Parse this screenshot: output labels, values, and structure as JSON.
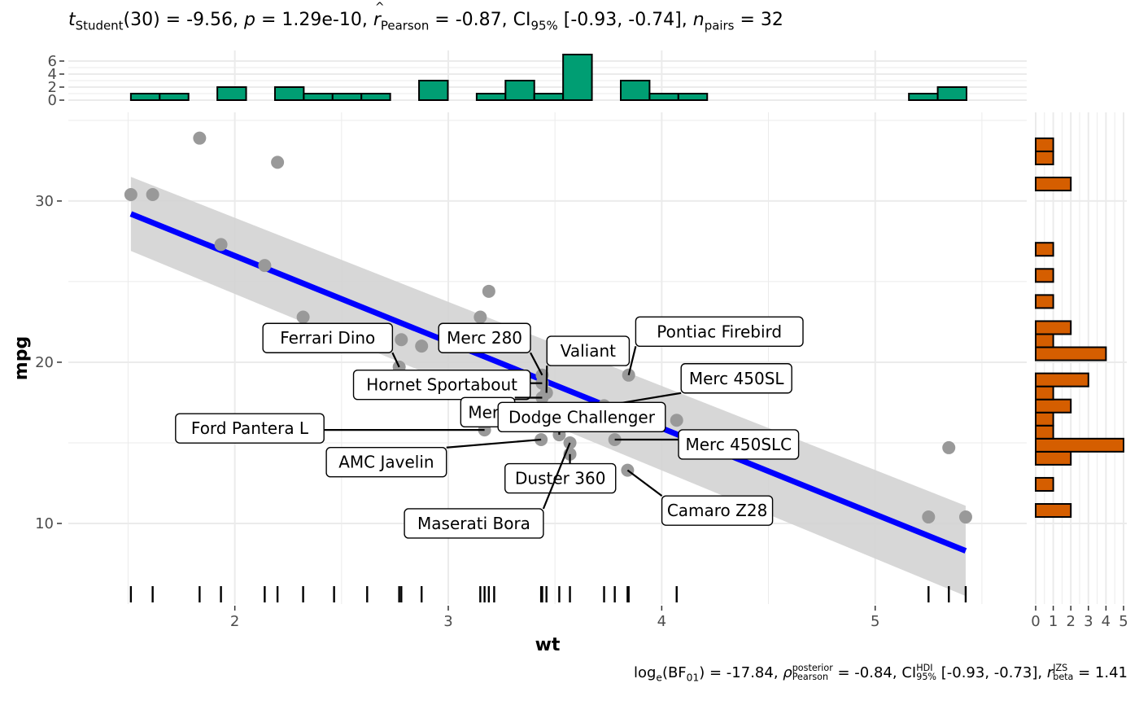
{
  "subtitle": {
    "t_label": "t",
    "t_sub": "Student",
    "t_value": "(30) = -9.56, ",
    "p_label": "p",
    "p_value": " = 1.29e-10, ",
    "r_label": "r",
    "r_sub": "Pearson",
    "r_value": " = -0.87, ",
    "ci_label": "CI",
    "ci_sub": "95%",
    "ci_value": " [-0.93, -0.74], ",
    "n_label": "n",
    "n_sub": "pairs",
    "n_value": " = 32"
  },
  "caption": {
    "bf_text": "log",
    "bf_sub": "e",
    "bf_rest": "(BF",
    "bf_rest_sub": "01",
    "bf_value": ") = -17.84, ",
    "rho_label": "ρ",
    "rho_sup": "posterior",
    "rho_sub": "Pearson",
    "rho_value": " = -0.84, ",
    "ci_label": "CI",
    "ci_sup": "HDI",
    "ci_sub": "95%",
    "ci_value": " [-0.93, -0.73], ",
    "r_label": "r",
    "r_sup": "JZS",
    "r_sub": "beta",
    "r_value": " = 1.41"
  },
  "colors": {
    "points": "#999999",
    "line": "#0000ff",
    "band": "#d3d3d3",
    "top_hist": "#009e73",
    "right_hist": "#d55e00",
    "grid": "#ebebeb"
  },
  "chart_data": {
    "type": "scatter",
    "xlabel": "wt",
    "ylabel": "mpg",
    "x_ticks": [
      2,
      3,
      4,
      5
    ],
    "y_ticks": [
      10,
      20,
      30
    ],
    "points": [
      {
        "x": 1.513,
        "y": 30.4
      },
      {
        "x": 1.615,
        "y": 30.4
      },
      {
        "x": 1.835,
        "y": 33.9
      },
      {
        "x": 1.935,
        "y": 27.3
      },
      {
        "x": 2.14,
        "y": 26.0
      },
      {
        "x": 2.2,
        "y": 32.4
      },
      {
        "x": 2.32,
        "y": 22.8
      },
      {
        "x": 2.465,
        "y": 21.5
      },
      {
        "x": 2.62,
        "y": 21.0
      },
      {
        "x": 2.77,
        "y": 19.7
      },
      {
        "x": 2.78,
        "y": 21.4
      },
      {
        "x": 2.875,
        "y": 21.0
      },
      {
        "x": 3.15,
        "y": 22.8
      },
      {
        "x": 3.17,
        "y": 15.8
      },
      {
        "x": 3.19,
        "y": 24.4
      },
      {
        "x": 3.215,
        "y": 21.4
      },
      {
        "x": 3.435,
        "y": 15.2
      },
      {
        "x": 3.44,
        "y": 18.7
      },
      {
        "x": 3.44,
        "y": 19.2
      },
      {
        "x": 3.44,
        "y": 17.8
      },
      {
        "x": 3.46,
        "y": 18.1
      },
      {
        "x": 3.52,
        "y": 15.5
      },
      {
        "x": 3.57,
        "y": 15.0
      },
      {
        "x": 3.57,
        "y": 14.3
      },
      {
        "x": 3.73,
        "y": 17.3
      },
      {
        "x": 3.78,
        "y": 15.2
      },
      {
        "x": 3.84,
        "y": 13.3
      },
      {
        "x": 3.845,
        "y": 19.2
      },
      {
        "x": 4.07,
        "y": 16.4
      },
      {
        "x": 5.25,
        "y": 10.4
      },
      {
        "x": 5.345,
        "y": 14.7
      },
      {
        "x": 5.424,
        "y": 10.4
      }
    ],
    "fit_line": {
      "x": [
        1.513,
        5.424
      ],
      "y": [
        29.2,
        8.3
      ]
    },
    "ci_band": {
      "x": [
        1.513,
        5.424
      ],
      "upper": [
        31.5,
        11.1
      ],
      "lower": [
        26.9,
        5.5
      ]
    },
    "labels": [
      {
        "text": "Ferrari Dino",
        "x": 2.77,
        "y": 19.7,
        "lx": 2.435,
        "ly": 21.5
      },
      {
        "text": "Merc 280",
        "x": 3.44,
        "y": 19.2,
        "lx": 3.17,
        "ly": 21.5
      },
      {
        "text": "Valiant",
        "x": 3.46,
        "y": 18.1,
        "lx": 3.655,
        "ly": 20.7
      },
      {
        "text": "Pontiac Firebird",
        "x": 3.845,
        "y": 19.2,
        "lx": 4.27,
        "ly": 21.9
      },
      {
        "text": "Hornet Sportabout",
        "x": 3.44,
        "y": 18.7,
        "lx": 2.97,
        "ly": 18.6
      },
      {
        "text": "Merc 450SL",
        "x": 3.73,
        "y": 17.3,
        "lx": 4.35,
        "ly": 19.0
      },
      {
        "text": "Merc",
        "x": 3.44,
        "y": 17.8,
        "lx": 3.185,
        "ly": 16.9
      },
      {
        "text": "Dodge Challenger",
        "x": 3.52,
        "y": 15.5,
        "lx": 3.625,
        "ly": 16.6
      },
      {
        "text": "Ford Pantera L",
        "x": 3.17,
        "y": 15.8,
        "lx": 2.07,
        "ly": 15.9
      },
      {
        "text": "Merc 450SLC",
        "x": 3.78,
        "y": 15.2,
        "lx": 4.36,
        "ly": 14.9
      },
      {
        "text": "AMC Javelin",
        "x": 3.435,
        "y": 15.2,
        "lx": 2.71,
        "ly": 13.8
      },
      {
        "text": "Duster 360",
        "x": 3.57,
        "y": 14.3,
        "lx": 3.525,
        "ly": 12.8
      },
      {
        "text": "Camaro Z28",
        "x": 3.84,
        "y": 13.3,
        "lx": 4.26,
        "ly": 10.8
      },
      {
        "text": "Maserati Bora",
        "x": 3.57,
        "y": 15.0,
        "lx": 3.12,
        "ly": 10.0
      }
    ],
    "top_histogram": {
      "bin_starts": [
        1.513,
        1.648,
        1.783,
        1.918,
        2.053,
        2.188,
        2.323,
        2.458,
        2.593,
        2.728,
        2.863,
        2.998,
        3.133,
        3.268,
        3.403,
        3.538,
        3.673,
        3.808,
        3.943,
        4.078,
        4.213,
        4.348,
        4.483,
        4.618,
        4.753,
        4.888,
        5.023,
        5.158,
        5.293
      ],
      "bin_width": 0.135,
      "counts": [
        1,
        1,
        0,
        2,
        0,
        2,
        1,
        1,
        1,
        0,
        3,
        0,
        1,
        3,
        1,
        7,
        0,
        3,
        1,
        1,
        0,
        0,
        0,
        0,
        0,
        0,
        0,
        1,
        2
      ],
      "y_ticks": [
        0,
        2,
        4,
        6
      ]
    },
    "right_histogram": {
      "bin_starts": [
        10.4,
        11.21,
        12.02,
        12.83,
        13.64,
        14.45,
        15.26,
        16.07,
        16.88,
        17.69,
        18.5,
        19.31,
        20.12,
        20.93,
        21.74,
        22.55,
        23.36,
        24.17,
        24.98,
        25.79,
        26.6,
        27.41,
        28.22,
        29.03,
        29.84,
        30.65,
        31.46,
        32.27,
        33.08
      ],
      "bin_width": 0.81,
      "counts": [
        2,
        0,
        1,
        0,
        2,
        5,
        1,
        1,
        2,
        1,
        3,
        0,
        4,
        1,
        2,
        0,
        1,
        0,
        1,
        0,
        1,
        0,
        0,
        0,
        0,
        2,
        0,
        1,
        1
      ],
      "x_ticks": [
        0,
        1,
        2,
        3,
        4,
        5
      ]
    },
    "rug_x": [
      1.513,
      1.615,
      1.835,
      1.935,
      2.14,
      2.2,
      2.32,
      2.465,
      2.62,
      2.77,
      2.78,
      2.875,
      3.15,
      3.17,
      3.19,
      3.215,
      3.435,
      3.44,
      3.46,
      3.52,
      3.57,
      3.73,
      3.78,
      3.84,
      3.845,
      4.07,
      5.25,
      5.345,
      5.424
    ],
    "xlim": [
      1.22,
      5.71
    ],
    "ylim": [
      5.0,
      35.5
    ]
  }
}
